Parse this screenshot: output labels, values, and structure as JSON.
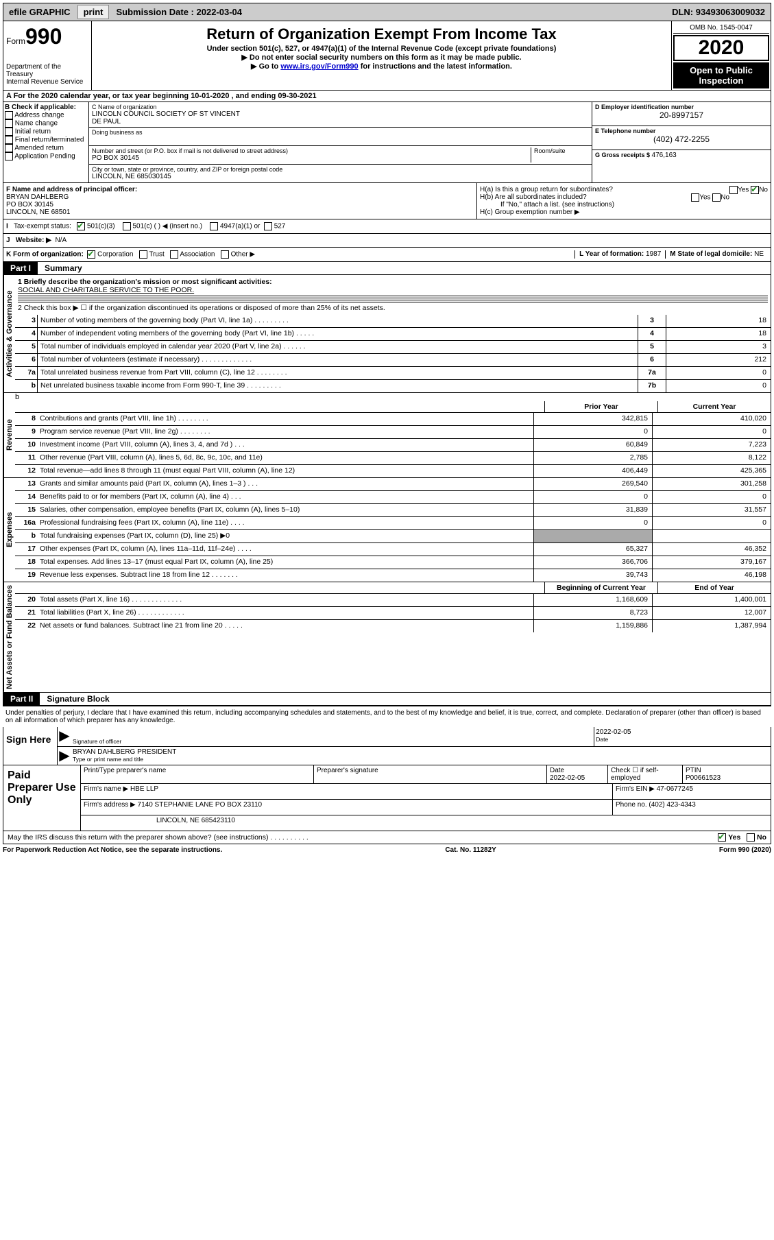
{
  "topbar": {
    "efile": "efile GRAPHIC",
    "print": "print",
    "sub_label": "Submission Date : ",
    "sub_date": "2022-03-04",
    "dln_label": "DLN: ",
    "dln": "93493063009032"
  },
  "header": {
    "form_word": "Form",
    "form_num": "990",
    "dept1": "Department of the Treasury",
    "dept2": "Internal Revenue Service",
    "title": "Return of Organization Exempt From Income Tax",
    "sub1": "Under section 501(c), 527, or 4947(a)(1) of the Internal Revenue Code (except private foundations)",
    "sub2": "▶ Do not enter social security numbers on this form as it may be made public.",
    "sub3a": "▶ Go to ",
    "sub3link": "www.irs.gov/Form990",
    "sub3b": " for instructions and the latest information.",
    "omb": "OMB No. 1545-0047",
    "year": "2020",
    "open1": "Open to Public",
    "open2": "Inspection"
  },
  "sectionA": {
    "text": "A For the 2020 calendar year, or tax year beginning 10-01-2020    , and ending 09-30-2021"
  },
  "colB": {
    "hdr": "B Check if applicable:",
    "addr": "Address change",
    "name": "Name change",
    "init": "Initial return",
    "final": "Final return/terminated",
    "amend": "Amended return",
    "app": "Application Pending"
  },
  "colC": {
    "name_lbl": "C Name of organization",
    "name1": "LINCOLN COUNCIL SOCIETY OF ST VINCENT",
    "name2": "DE PAUL",
    "dba_lbl": "Doing business as",
    "street_lbl": "Number and street (or P.O. box if mail is not delivered to street address)",
    "room_lbl": "Room/suite",
    "street": "PO BOX 30145",
    "city_lbl": "City or town, state or province, country, and ZIP or foreign postal code",
    "city": "LINCOLN, NE  685030145"
  },
  "colD": {
    "ein_lbl": "D Employer identification number",
    "ein": "20-8997157",
    "tel_lbl": "E Telephone number",
    "tel": "(402) 472-2255",
    "gross_lbl": "G Gross receipts $ ",
    "gross": "476,163"
  },
  "fh": {
    "f_lbl": "F Name and address of principal officer:",
    "f_name": "BRYAN DAHLBERG",
    "f_addr1": "PO BOX 30145",
    "f_addr2": "LINCOLN, NE  68501",
    "ha": "H(a)  Is this a group return for subordinates?",
    "hb": "H(b)  Are all subordinates included?",
    "hb_note": "If \"No,\" attach a list. (see instructions)",
    "hc": "H(c)  Group exemption number ▶",
    "yes": "Yes",
    "no": "No"
  },
  "status": {
    "i": "I",
    "lbl": "Tax-exempt status:",
    "c3": "501(c)(3)",
    "c": "501(c) (   ) ◀ (insert no.)",
    "a1": "4947(a)(1) or",
    "s527": "527"
  },
  "website": {
    "j": "J",
    "lbl": "Website: ▶",
    "val": "N/A"
  },
  "korg": {
    "k": "K Form of organization:",
    "corp": "Corporation",
    "trust": "Trust",
    "assoc": "Association",
    "other": "Other ▶",
    "l": "L Year of formation: ",
    "lval": "1987",
    "m": "M State of legal domicile: ",
    "mval": "NE"
  },
  "parts": {
    "p1": "Part I",
    "p1t": "Summary",
    "p2": "Part II",
    "p2t": "Signature Block"
  },
  "vert": {
    "gov": "Activities & Governance",
    "rev": "Revenue",
    "exp": "Expenses",
    "net": "Net Assets or Fund Balances"
  },
  "mission": {
    "l1": "1  Briefly describe the organization's mission or most significant activities:",
    "text": "SOCIAL AND CHARITABLE SERVICE TO THE POOR.",
    "l2": "2   Check this box ▶ ☐  if the organization discontinued its operations or disposed of more than 25% of its net assets."
  },
  "summary": [
    {
      "n": "3",
      "d": "Number of voting members of the governing body (Part VI, line 1a)   .    .    .    .    .    .    .    .    .",
      "b": "3",
      "v": "18"
    },
    {
      "n": "4",
      "d": "Number of independent voting members of the governing body (Part VI, line 1b)   .    .    .    .    .",
      "b": "4",
      "v": "18"
    },
    {
      "n": "5",
      "d": "Total number of individuals employed in calendar year 2020 (Part V, line 2a)   .    .    .    .    .    .",
      "b": "5",
      "v": "3"
    },
    {
      "n": "6",
      "d": "Total number of volunteers (estimate if necessary)   .    .    .    .    .    .    .    .    .    .    .    .    .",
      "b": "6",
      "v": "212"
    },
    {
      "n": "7a",
      "d": "Total unrelated business revenue from Part VIII, column (C), line 12   .    .    .    .    .    .    .    .",
      "b": "7a",
      "v": "0"
    },
    {
      "n": "b",
      "d": "Net unrelated business taxable income from Form 990-T, line 39   .    .    .    .    .    .    .    .    .",
      "b": "7b",
      "v": "0"
    }
  ],
  "colheads": {
    "prior": "Prior Year",
    "current": "Current Year",
    "boy": "Beginning of Current Year",
    "eoy": "End of Year"
  },
  "revenue": [
    {
      "n": "8",
      "d": "Contributions and grants (Part VIII, line 1h)   .    .    .    .    .    .    .    .",
      "c1": "342,815",
      "c2": "410,020"
    },
    {
      "n": "9",
      "d": "Program service revenue (Part VIII, line 2g)   .    .    .    .    .    .    .    .",
      "c1": "0",
      "c2": "0"
    },
    {
      "n": "10",
      "d": "Investment income (Part VIII, column (A), lines 3, 4, and 7d )   .    .    .",
      "c1": "60,849",
      "c2": "7,223"
    },
    {
      "n": "11",
      "d": "Other revenue (Part VIII, column (A), lines 5, 6d, 8c, 9c, 10c, and 11e)",
      "c1": "2,785",
      "c2": "8,122"
    },
    {
      "n": "12",
      "d": "Total revenue—add lines 8 through 11 (must equal Part VIII, column (A), line 12)",
      "c1": "406,449",
      "c2": "425,365"
    }
  ],
  "expenses": [
    {
      "n": "13",
      "d": "Grants and similar amounts paid (Part IX, column (A), lines 1–3 )   .    .    .",
      "c1": "269,540",
      "c2": "301,258"
    },
    {
      "n": "14",
      "d": "Benefits paid to or for members (Part IX, column (A), line 4)   .    .    .",
      "c1": "0",
      "c2": "0"
    },
    {
      "n": "15",
      "d": "Salaries, other compensation, employee benefits (Part IX, column (A), lines 5–10)",
      "c1": "31,839",
      "c2": "31,557"
    },
    {
      "n": "16a",
      "d": "Professional fundraising fees (Part IX, column (A), line 11e)   .    .    .    .",
      "c1": "0",
      "c2": "0"
    },
    {
      "n": "b",
      "d": "Total fundraising expenses (Part IX, column (D), line 25) ▶0",
      "c1": "",
      "c2": "",
      "shade": true
    },
    {
      "n": "17",
      "d": "Other expenses (Part IX, column (A), lines 11a–11d, 11f–24e)   .    .    .    .",
      "c1": "65,327",
      "c2": "46,352"
    },
    {
      "n": "18",
      "d": "Total expenses. Add lines 13–17 (must equal Part IX, column (A), line 25)",
      "c1": "366,706",
      "c2": "379,167"
    },
    {
      "n": "19",
      "d": "Revenue less expenses. Subtract line 18 from line 12   .    .    .    .    .    .    .",
      "c1": "39,743",
      "c2": "46,198"
    }
  ],
  "netassets": [
    {
      "n": "20",
      "d": "Total assets (Part X, line 16)   .    .    .    .    .    .    .    .    .    .    .    .    .",
      "c1": "1,168,609",
      "c2": "1,400,001"
    },
    {
      "n": "21",
      "d": "Total liabilities (Part X, line 26)   .    .    .    .    .    .    .    .    .    .    .    .",
      "c1": "8,723",
      "c2": "12,007"
    },
    {
      "n": "22",
      "d": "Net assets or fund balances. Subtract line 21 from line 20   .    .    .    .    .",
      "c1": "1,159,886",
      "c2": "1,387,994"
    }
  ],
  "perjury": "Under penalties of perjury, I declare that I have examined this return, including accompanying schedules and statements, and to the best of my knowledge and belief, it is true, correct, and complete. Declaration of preparer (other than officer) is based on all information of which preparer has any knowledge.",
  "sign": {
    "here": "Sign Here",
    "sig_lbl": "Signature of officer",
    "date_lbl": "Date",
    "date": "2022-02-05",
    "typed": "BRYAN DAHLBERG  PRESIDENT",
    "typed_lbl": "Type or print name and title"
  },
  "prep": {
    "hdr": "Paid Preparer Use Only",
    "name_lbl": "Print/Type preparer's name",
    "sig_lbl": "Preparer's signature",
    "date_lbl": "Date",
    "date": "2022-02-05",
    "self_lbl": "Check ☐ if self-employed",
    "ptin_lbl": "PTIN",
    "ptin": "P00661523",
    "firm_lbl": "Firm's name     ▶ ",
    "firm": "HBE LLP",
    "ein_lbl": "Firm's EIN ▶ ",
    "ein": "47-0677245",
    "addr_lbl": "Firm's address ▶ ",
    "addr1": "7140 STEPHANIE LANE PO BOX 23110",
    "addr2": "LINCOLN, NE  685423110",
    "phone_lbl": "Phone no. ",
    "phone": "(402) 423-4343"
  },
  "discuss": {
    "q": "May the IRS discuss this return with the preparer shown above? (see instructions)   .    .    .    .    .    .    .    .    .    .",
    "yes": "Yes",
    "no": "No"
  },
  "footer": {
    "left": "For Paperwork Reduction Act Notice, see the separate instructions.",
    "mid": "Cat. No. 11282Y",
    "right": "Form 990 (2020)"
  }
}
